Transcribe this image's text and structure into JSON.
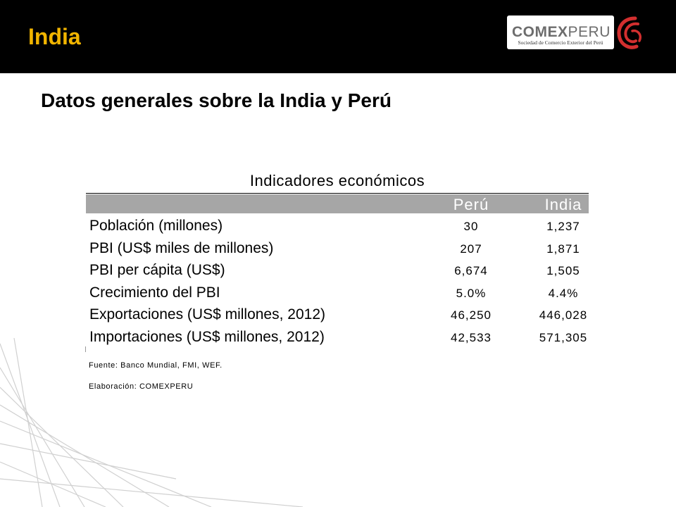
{
  "header": {
    "slide_tag": "India",
    "logo": {
      "word_bold": "COMEX",
      "word_light": "PERU",
      "subtitle": "Sociedad de Comercio Exterior del Perú",
      "mark_icon": "comexperu-swirl-icon",
      "mark_color": "#D32F2F"
    },
    "background": "#000000",
    "tag_color": "#F2B500"
  },
  "page_title": "Datos generales sobre la India y Perú",
  "table": {
    "title": "Indicadores económicos",
    "columns": [
      "",
      "Perú",
      "India"
    ],
    "header_color": "#A6A6A6",
    "rows": [
      {
        "label": "Población (millones)",
        "peru": "30",
        "india": "1,237"
      },
      {
        "label": "PBI (US$ miles de millones)",
        "peru": "207",
        "india": "1,871"
      },
      {
        "label": "PBI per cápita (US$)",
        "peru": "6,674",
        "india": "1,505"
      },
      {
        "label": "Crecimiento del PBI",
        "peru": "5.0%",
        "india": "4.4%"
      },
      {
        "label": "Exportaciones (US$ millones, 2012)",
        "peru": "46,250",
        "india": "446,028"
      },
      {
        "label": "Importaciones (US$ millones, 2012)",
        "peru": "42,533",
        "india": "571,305"
      }
    ]
  },
  "notes": {
    "source": "Fuente: Banco Mundial, FMI, WEF.",
    "author": "Elaboración: COMEXPERU"
  }
}
